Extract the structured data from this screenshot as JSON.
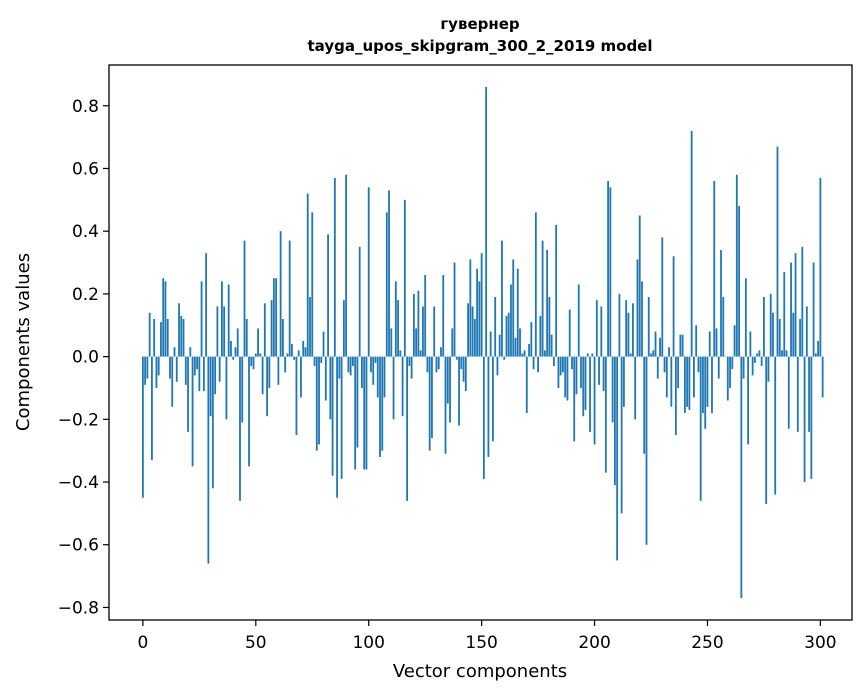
{
  "chart_data": {
    "type": "bar",
    "title": "гувернер",
    "subtitle": "tayga_upos_skipgram_300_2_2019 model",
    "xlabel": "Vector components",
    "ylabel": "Components values",
    "xlim": [
      -15,
      314
    ],
    "ylim": [
      -0.84,
      0.93
    ],
    "xticks": [
      0,
      50,
      100,
      150,
      200,
      250,
      300
    ],
    "xtick_labels": [
      "0",
      "50",
      "100",
      "150",
      "200",
      "250",
      "300"
    ],
    "yticks": [
      0.8,
      0.6,
      0.4,
      0.2,
      0.0,
      -0.2,
      -0.4,
      -0.6,
      -0.8
    ],
    "ytick_labels": [
      "0.8",
      "0.6",
      "0.4",
      "0.2",
      "0.0",
      "−0.2",
      "−0.4",
      "−0.6",
      "−0.8"
    ],
    "bar_color": "#1f77b4",
    "grid": false,
    "values": [
      -0.45,
      -0.09,
      -0.07,
      0.14,
      -0.33,
      0.12,
      -0.1,
      -0.06,
      0.11,
      0.25,
      0.24,
      0.12,
      -0.07,
      -0.16,
      0.03,
      -0.08,
      0.17,
      0.13,
      0.12,
      -0.09,
      -0.24,
      0.03,
      -0.35,
      -0.06,
      -0.04,
      -0.11,
      0.24,
      -0.11,
      0.33,
      -0.66,
      -0.19,
      -0.42,
      -0.12,
      0.16,
      -0.08,
      0.24,
      0.16,
      -0.2,
      0.23,
      0.05,
      -0.01,
      0.03,
      0.09,
      -0.46,
      -0.21,
      0.37,
      0.12,
      -0.35,
      -0.03,
      -0.04,
      0.01,
      0.09,
      0.01,
      -0.12,
      0.17,
      -0.19,
      -0.1,
      0.18,
      0.25,
      0.25,
      -0.09,
      0.4,
      0.12,
      -0.05,
      0.01,
      0.37,
      0.04,
      -0.01,
      -0.25,
      0.02,
      -0.13,
      0.05,
      0.03,
      0.52,
      0.19,
      0.46,
      -0.03,
      -0.3,
      -0.28,
      -0.02,
      0.08,
      -0.14,
      0.39,
      -0.2,
      -0.38,
      0.57,
      -0.45,
      -0.07,
      -0.39,
      0.18,
      0.58,
      -0.05,
      -0.06,
      -0.03,
      -0.36,
      -0.29,
      0.35,
      -0.1,
      -0.36,
      -0.36,
      0.54,
      -0.05,
      -0.09,
      -0.02,
      -0.13,
      -0.32,
      -0.3,
      -0.13,
      0.46,
      0.53,
      0.09,
      -0.2,
      0.24,
      0.18,
      0.02,
      -0.19,
      0.5,
      -0.46,
      -0.03,
      -0.07,
      0.2,
      0.09,
      0.21,
      0.02,
      0.16,
      0.26,
      -0.05,
      -0.3,
      -0.26,
      0.16,
      -0.05,
      -0.04,
      0.03,
      0.26,
      -0.31,
      -0.15,
      -0.21,
      0.09,
      0.3,
      -0.01,
      -0.22,
      -0.04,
      -0.08,
      -0.11,
      0.17,
      0.31,
      0.16,
      0.12,
      0.28,
      0.24,
      0.33,
      -0.39,
      0.86,
      -0.32,
      0.08,
      -0.27,
      0.19,
      -0.06,
      0.07,
      0.37,
      -0.01,
      0.13,
      0.14,
      0.23,
      0.31,
      0.06,
      0.28,
      0.09,
      0.01,
      0.02,
      -0.18,
      0.04,
      0.11,
      -0.04,
      0.46,
      -0.05,
      0.13,
      0.37,
      0.02,
      0.34,
      0.19,
      0.07,
      -0.03,
      0.42,
      -0.1,
      -0.06,
      -0.05,
      -0.13,
      -0.14,
      0.15,
      -0.04,
      -0.27,
      -0.12,
      0.23,
      -0.1,
      -0.19,
      -0.17,
      0.01,
      -0.24,
      0.01,
      -0.28,
      0.18,
      -0.09,
      0.16,
      -0.11,
      -0.37,
      0.56,
      0.54,
      -0.21,
      -0.41,
      -0.65,
      0.2,
      -0.5,
      -0.16,
      0.18,
      0.14,
      0.01,
      0.17,
      -0.2,
      0.31,
      0.45,
      0.24,
      -0.31,
      -0.6,
      0.19,
      0.01,
      0.02,
      0.08,
      -0.07,
      0.06,
      0.38,
      -0.05,
      -0.13,
      0.03,
      -0.16,
      0.32,
      -0.25,
      -0.1,
      0.07,
      0.07,
      -0.18,
      -0.16,
      -0.17,
      0.72,
      -0.13,
      0.1,
      -0.05,
      -0.46,
      -0.18,
      -0.23,
      -0.16,
      0.08,
      -0.18,
      0.56,
      0.09,
      -0.07,
      0.34,
      0.19,
      0.0,
      -0.14,
      -0.1,
      -0.04,
      0.1,
      0.58,
      0.48,
      -0.77,
      -0.07,
      0.25,
      -0.28,
      0.08,
      -0.06,
      -0.02,
      0.01,
      0.02,
      -0.03,
      0.19,
      -0.47,
      -0.08,
      0.2,
      0.14,
      -0.44,
      0.67,
      0.12,
      0.02,
      0.27,
      0.02,
      -0.23,
      0.3,
      0.14,
      0.33,
      -0.24,
      0.12,
      0.35,
      -0.4,
      0.16,
      -0.24,
      -0.39,
      0.3,
      0.01,
      0.05,
      0.57,
      -0.13
    ]
  }
}
